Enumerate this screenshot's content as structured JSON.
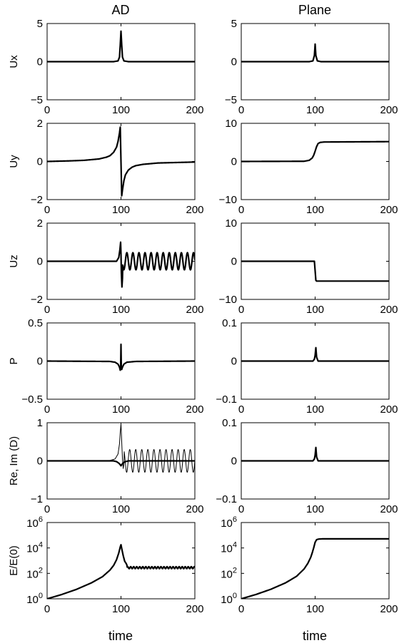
{
  "figure": {
    "column_titles": [
      "AD",
      "Plane"
    ],
    "x_label": "time"
  },
  "chart_data": [
    {
      "id": "ux-ad",
      "type": "line",
      "column": "AD",
      "ylabel": "Ux",
      "xlim": [
        0,
        200
      ],
      "ylim": [
        -5,
        5
      ],
      "xticks": [
        0,
        100,
        200
      ],
      "yticks": [
        {
          "v": 5,
          "label": "5"
        },
        {
          "v": 0,
          "label": "0"
        },
        {
          "v": -5,
          "label": "−5"
        }
      ],
      "series": [
        {
          "style": "thick",
          "values": [
            [
              0,
              0
            ],
            [
              90,
              0
            ],
            [
              96,
              0.1
            ],
            [
              98,
              0.6
            ],
            [
              99,
              2.2
            ],
            [
              100,
              4.0
            ],
            [
              101,
              2.2
            ],
            [
              102,
              0.6
            ],
            [
              104,
              0.1
            ],
            [
              110,
              0
            ],
            [
              200,
              0
            ]
          ]
        }
      ]
    },
    {
      "id": "ux-plane",
      "type": "line",
      "column": "Plane",
      "ylabel": "",
      "xlim": [
        0,
        200
      ],
      "ylim": [
        -5,
        5
      ],
      "xticks": [
        0,
        100,
        200
      ],
      "yticks": [
        {
          "v": 5,
          "label": "5"
        },
        {
          "v": 0,
          "label": "0"
        },
        {
          "v": -5,
          "label": "−5"
        }
      ],
      "series": [
        {
          "style": "thick",
          "values": [
            [
              0,
              0
            ],
            [
              92,
              0
            ],
            [
              97,
              0.1
            ],
            [
              99,
              0.8
            ],
            [
              100,
              2.3
            ],
            [
              101,
              0.8
            ],
            [
              103,
              0.1
            ],
            [
              108,
              0
            ],
            [
              200,
              0
            ]
          ]
        }
      ]
    },
    {
      "id": "uy-ad",
      "type": "line",
      "column": "AD",
      "ylabel": "Uy",
      "xlim": [
        0,
        200
      ],
      "ylim": [
        -2,
        2
      ],
      "xticks": [
        0,
        100,
        200
      ],
      "yticks": [
        {
          "v": 2,
          "label": "2"
        },
        {
          "v": 0,
          "label": "0"
        },
        {
          "v": -2,
          "label": "−2"
        }
      ],
      "series": [
        {
          "style": "thick",
          "values": [
            [
              0,
              0
            ],
            [
              30,
              0.03
            ],
            [
              50,
              0.06
            ],
            [
              70,
              0.13
            ],
            [
              80,
              0.22
            ],
            [
              85,
              0.3
            ],
            [
              90,
              0.48
            ],
            [
              94,
              0.75
            ],
            [
              96,
              1.05
            ],
            [
              98,
              1.5
            ],
            [
              99,
              1.8
            ],
            [
              100,
              0
            ],
            [
              101,
              -1.8
            ],
            [
              102,
              -1.5
            ],
            [
              104,
              -1.0
            ],
            [
              106,
              -0.7
            ],
            [
              110,
              -0.45
            ],
            [
              115,
              -0.3
            ],
            [
              120,
              -0.22
            ],
            [
              130,
              -0.15
            ],
            [
              150,
              -0.08
            ],
            [
              200,
              -0.03
            ]
          ]
        }
      ]
    },
    {
      "id": "uy-plane",
      "type": "line",
      "column": "Plane",
      "ylabel": "",
      "xlim": [
        0,
        200
      ],
      "ylim": [
        -10,
        10
      ],
      "xticks": [
        0,
        100,
        200
      ],
      "yticks": [
        {
          "v": 10,
          "label": "10"
        },
        {
          "v": 0,
          "label": "0"
        },
        {
          "v": -10,
          "label": "−10"
        }
      ],
      "series": [
        {
          "style": "thick",
          "values": [
            [
              0,
              0
            ],
            [
              85,
              0.05
            ],
            [
              92,
              0.3
            ],
            [
              96,
              0.9
            ],
            [
              98,
              1.6
            ],
            [
              100,
              2.7
            ],
            [
              102,
              3.9
            ],
            [
              104,
              4.7
            ],
            [
              107,
              5.0
            ],
            [
              112,
              5.1
            ],
            [
              200,
              5.2
            ]
          ]
        }
      ]
    },
    {
      "id": "uz-ad",
      "type": "line",
      "column": "AD",
      "ylabel": "Uz",
      "xlim": [
        0,
        200
      ],
      "ylim": [
        -2,
        2
      ],
      "xticks": [
        0,
        100,
        200
      ],
      "yticks": [
        {
          "v": 2,
          "label": "2"
        },
        {
          "v": 0,
          "label": "0"
        },
        {
          "v": -2,
          "label": "−2"
        }
      ],
      "series": [
        {
          "style": "thick",
          "oscillation": {
            "x_start": 102,
            "x_end": 200,
            "amplitude": 0.45,
            "period": 8.2,
            "phase": 3.3
          },
          "values": [
            [
              0,
              0
            ],
            [
              94,
              0
            ],
            [
              97,
              0.2
            ],
            [
              98.5,
              0.6
            ],
            [
              99.5,
              1.0
            ],
            [
              100,
              0.4
            ],
            [
              100.5,
              -0.6
            ],
            [
              101.3,
              -1.35
            ],
            [
              102,
              -0.9
            ]
          ]
        }
      ]
    },
    {
      "id": "uz-plane",
      "type": "line",
      "column": "Plane",
      "ylabel": "",
      "xlim": [
        0,
        200
      ],
      "ylim": [
        -10,
        10
      ],
      "xticks": [
        0,
        100,
        200
      ],
      "yticks": [
        {
          "v": 10,
          "label": "10"
        },
        {
          "v": 0,
          "label": "0"
        },
        {
          "v": -10,
          "label": "−10"
        }
      ],
      "series": [
        {
          "style": "thick",
          "values": [
            [
              0,
              0
            ],
            [
              99,
              0
            ],
            [
              100,
              -2.5
            ],
            [
              101,
              -5.0
            ],
            [
              102,
              -5.2
            ],
            [
              200,
              -5.2
            ]
          ]
        }
      ]
    },
    {
      "id": "p-ad",
      "type": "line",
      "column": "AD",
      "ylabel": "P",
      "xlim": [
        0,
        200
      ],
      "ylim": [
        -0.5,
        0.5
      ],
      "xticks": [
        0,
        100,
        200
      ],
      "yticks": [
        {
          "v": 0.5,
          "label": "0.5"
        },
        {
          "v": 0,
          "label": "0"
        },
        {
          "v": -0.5,
          "label": "−0.5"
        }
      ],
      "series": [
        {
          "style": "thick",
          "values": [
            [
              0,
              0
            ],
            [
              85,
              -0.005
            ],
            [
              92,
              -0.015
            ],
            [
              96,
              -0.04
            ],
            [
              98,
              -0.08
            ],
            [
              99,
              -0.12
            ],
            [
              99.6,
              -0.05
            ],
            [
              100,
              0.22
            ],
            [
              100.4,
              -0.05
            ],
            [
              101,
              -0.11
            ],
            [
              102,
              -0.08
            ],
            [
              104,
              -0.04
            ],
            [
              108,
              -0.015
            ],
            [
              120,
              -0.005
            ],
            [
              200,
              0
            ]
          ]
        }
      ]
    },
    {
      "id": "p-plane",
      "type": "line",
      "column": "Plane",
      "ylabel": "",
      "xlim": [
        0,
        200
      ],
      "ylim": [
        -0.1,
        0.1
      ],
      "xticks": [
        0,
        100,
        200
      ],
      "yticks": [
        {
          "v": 0.1,
          "label": "0.1"
        },
        {
          "v": 0,
          "label": "0"
        },
        {
          "v": -0.1,
          "label": "−0.1"
        }
      ],
      "series": [
        {
          "style": "thick",
          "values": [
            [
              0,
              0
            ],
            [
              97,
              0
            ],
            [
              99,
              0.005
            ],
            [
              100,
              0.015
            ],
            [
              101,
              0.035
            ],
            [
              102,
              0.01
            ],
            [
              104,
              0
            ],
            [
              200,
              0
            ]
          ]
        }
      ]
    },
    {
      "id": "d-ad",
      "type": "line",
      "column": "AD",
      "ylabel": "Re, Im (D)",
      "xlim": [
        0,
        200
      ],
      "ylim": [
        -1,
        1
      ],
      "xticks": [
        0,
        100,
        200
      ],
      "yticks": [
        {
          "v": 1,
          "label": "1"
        },
        {
          "v": 0,
          "label": "0"
        },
        {
          "v": -1,
          "label": "−1"
        }
      ],
      "series": [
        {
          "style": "thin",
          "oscillation": {
            "x_start": 104,
            "x_end": 200,
            "amplitude": 0.3,
            "period": 8.2,
            "phase": 1.9
          },
          "values": [
            [
              0,
              0
            ],
            [
              85,
              0.01
            ],
            [
              92,
              0.05
            ],
            [
              96,
              0.18
            ],
            [
              98,
              0.45
            ],
            [
              99,
              0.75
            ],
            [
              100,
              0.97
            ],
            [
              101,
              0.5
            ],
            [
              102,
              0.05
            ],
            [
              103,
              -0.2
            ],
            [
              104,
              -0.08
            ]
          ]
        },
        {
          "style": "thick",
          "values": [
            [
              0,
              0
            ],
            [
              90,
              0
            ],
            [
              94,
              -0.02
            ],
            [
              97,
              -0.06
            ],
            [
              99,
              -0.1
            ],
            [
              100,
              -0.13
            ],
            [
              101,
              -0.1
            ],
            [
              103,
              -0.05
            ],
            [
              106,
              -0.02
            ],
            [
              110,
              0
            ],
            [
              200,
              0
            ]
          ]
        }
      ]
    },
    {
      "id": "d-plane",
      "type": "line",
      "column": "Plane",
      "ylabel": "",
      "xlim": [
        0,
        200
      ],
      "ylim": [
        -0.1,
        0.1
      ],
      "xticks": [
        0,
        100,
        200
      ],
      "yticks": [
        {
          "v": 0.1,
          "label": "0.1"
        },
        {
          "v": 0,
          "label": "0"
        },
        {
          "v": -0.1,
          "label": "−0.1"
        }
      ],
      "series": [
        {
          "style": "thick",
          "values": [
            [
              0,
              0
            ],
            [
              97,
              0
            ],
            [
              99,
              0.005
            ],
            [
              100,
              0.015
            ],
            [
              101,
              0.035
            ],
            [
              102,
              0.01
            ],
            [
              104,
              0
            ],
            [
              200,
              0
            ]
          ]
        }
      ]
    },
    {
      "id": "e-ad",
      "type": "line",
      "column": "AD",
      "ylabel": "E/E(0)",
      "scale": "log",
      "xlim": [
        0,
        200
      ],
      "ylim": [
        1,
        1000000
      ],
      "xticks": [
        0,
        100,
        200
      ],
      "yticks": [
        {
          "v": 1000000,
          "base": "10",
          "exp": "6"
        },
        {
          "v": 10000,
          "base": "10",
          "exp": "4"
        },
        {
          "v": 100,
          "base": "10",
          "exp": "2"
        },
        {
          "v": 1,
          "base": "10",
          "exp": "0"
        }
      ],
      "series": [
        {
          "style": "thick",
          "oscillation": {
            "x_start": 108,
            "x_end": 200,
            "amplitude": 0.08,
            "period": 4.1,
            "phase": 0,
            "log_center": 2.45
          },
          "values": [
            [
              0,
              1
            ],
            [
              20,
              2.2
            ],
            [
              40,
              5.6
            ],
            [
              60,
              18
            ],
            [
              75,
              55
            ],
            [
              85,
              180
            ],
            [
              90,
              420
            ],
            [
              94,
              1200
            ],
            [
              97,
              4000
            ],
            [
              99,
              12000
            ],
            [
              100,
              18000
            ],
            [
              101,
              9000
            ],
            [
              103,
              2500
            ],
            [
              105,
              900
            ],
            [
              107,
              600
            ],
            [
              108,
              450
            ]
          ]
        }
      ]
    },
    {
      "id": "e-plane",
      "type": "line",
      "column": "Plane",
      "ylabel": "",
      "scale": "log",
      "xlim": [
        0,
        200
      ],
      "ylim": [
        1,
        1000000
      ],
      "xticks": [
        0,
        100,
        200
      ],
      "yticks": [
        {
          "v": 1000000,
          "base": "10",
          "exp": "6"
        },
        {
          "v": 10000,
          "base": "10",
          "exp": "4"
        },
        {
          "v": 100,
          "base": "10",
          "exp": "2"
        },
        {
          "v": 1,
          "base": "10",
          "exp": "0"
        }
      ],
      "series": [
        {
          "style": "thick",
          "values": [
            [
              0,
              1
            ],
            [
              20,
              2.2
            ],
            [
              40,
              5.6
            ],
            [
              60,
              18
            ],
            [
              75,
              60
            ],
            [
              85,
              220
            ],
            [
              90,
              600
            ],
            [
              94,
              1800
            ],
            [
              96,
              4000
            ],
            [
              98,
              10000
            ],
            [
              100,
              28000
            ],
            [
              102,
              45000
            ],
            [
              105,
              50000
            ],
            [
              110,
              52000
            ],
            [
              200,
              52000
            ]
          ]
        }
      ]
    }
  ]
}
